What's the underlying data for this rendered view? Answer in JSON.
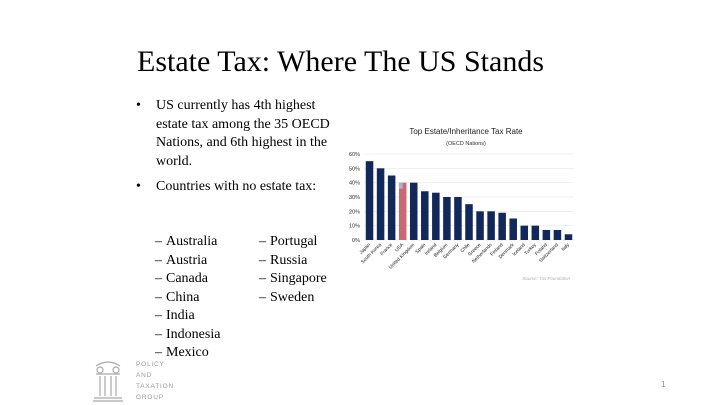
{
  "slide": {
    "title": "Estate Tax: Where The US Stands",
    "bullets": [
      {
        "marker": "•",
        "text": "US currently has 4th highest estate tax among the 35 OECD Nations, and 6th highest in the world."
      },
      {
        "marker": "•",
        "text": "Countries with no estate tax:"
      }
    ],
    "countries_col1": [
      "Australia",
      "Austria",
      "Canada",
      "China",
      "India",
      "Indonesia",
      "Mexico"
    ],
    "countries_col2": [
      "Portugal",
      "Russia",
      "Singapore",
      "Sweden"
    ],
    "dash": "–",
    "page_number": "1"
  },
  "logo": {
    "lines": [
      "POLICY",
      "AND",
      "TAXATION",
      "GROUP"
    ]
  },
  "chart_data": {
    "type": "bar",
    "title": "Top Estate/Inheritance Tax Rate",
    "subtitle": "(OECD Nations)",
    "source": "Source: Tax Foundation",
    "categories": [
      "Japan",
      "South Korea",
      "France",
      "USA",
      "United Kingdom",
      "Spain",
      "Ireland",
      "Belgium",
      "Germany",
      "Chile",
      "Greece",
      "Netherlands",
      "Finland",
      "Denmark",
      "Iceland",
      "Turkey",
      "Poland",
      "Switzerland",
      "Italy"
    ],
    "values": [
      55,
      50,
      45,
      40,
      40,
      34,
      33,
      30,
      30,
      25,
      20,
      20,
      19,
      15,
      10,
      10,
      7,
      7,
      4
    ],
    "highlight_index": 3,
    "ylim": [
      0,
      60
    ],
    "yticks": [
      "0%",
      "10%",
      "20%",
      "30%",
      "40%",
      "50%",
      "60%"
    ],
    "grid": true,
    "colors": {
      "bar": "#12285a",
      "highlight_red": "#c96a72",
      "highlight_blue": "#a9b3d6",
      "grid": "#e6e6e6"
    }
  }
}
